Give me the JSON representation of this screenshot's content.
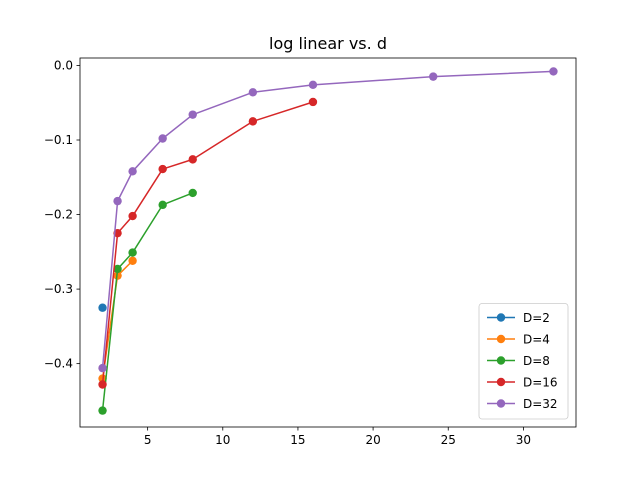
{
  "chart_data": {
    "type": "line",
    "title": "log linear vs. d",
    "xlabel": "",
    "ylabel": "",
    "xlim": [
      0.5,
      33.5
    ],
    "ylim": [
      -0.485,
      0.01
    ],
    "xticks": [
      5,
      10,
      15,
      20,
      25,
      30
    ],
    "yticks": [
      0.0,
      -0.1,
      -0.2,
      -0.3,
      -0.4
    ],
    "ytick_labels": [
      "0.0",
      "−0.1",
      "−0.2",
      "−0.3",
      "−0.4"
    ],
    "grid": false,
    "legend_position": "lower-right",
    "series": [
      {
        "name": "D=2",
        "color": "#1f77b4",
        "x": [
          2
        ],
        "y": [
          -0.325
        ]
      },
      {
        "name": "D=4",
        "color": "#ff7f0e",
        "x": [
          2,
          3,
          4
        ],
        "y": [
          -0.42,
          -0.282,
          -0.262
        ]
      },
      {
        "name": "D=8",
        "color": "#2ca02c",
        "x": [
          2,
          3,
          4,
          6,
          8
        ],
        "y": [
          -0.463,
          -0.273,
          -0.251,
          -0.187,
          -0.171
        ]
      },
      {
        "name": "D=16",
        "color": "#d62728",
        "x": [
          2,
          3,
          4,
          6,
          8,
          12,
          16
        ],
        "y": [
          -0.428,
          -0.225,
          -0.202,
          -0.139,
          -0.126,
          -0.075,
          -0.049
        ]
      },
      {
        "name": "D=32",
        "color": "#9467bd",
        "x": [
          2,
          3,
          4,
          6,
          8,
          12,
          16,
          24,
          32
        ],
        "y": [
          -0.406,
          -0.182,
          -0.142,
          -0.098,
          -0.066,
          -0.036,
          -0.026,
          -0.015,
          -0.008
        ]
      }
    ]
  }
}
